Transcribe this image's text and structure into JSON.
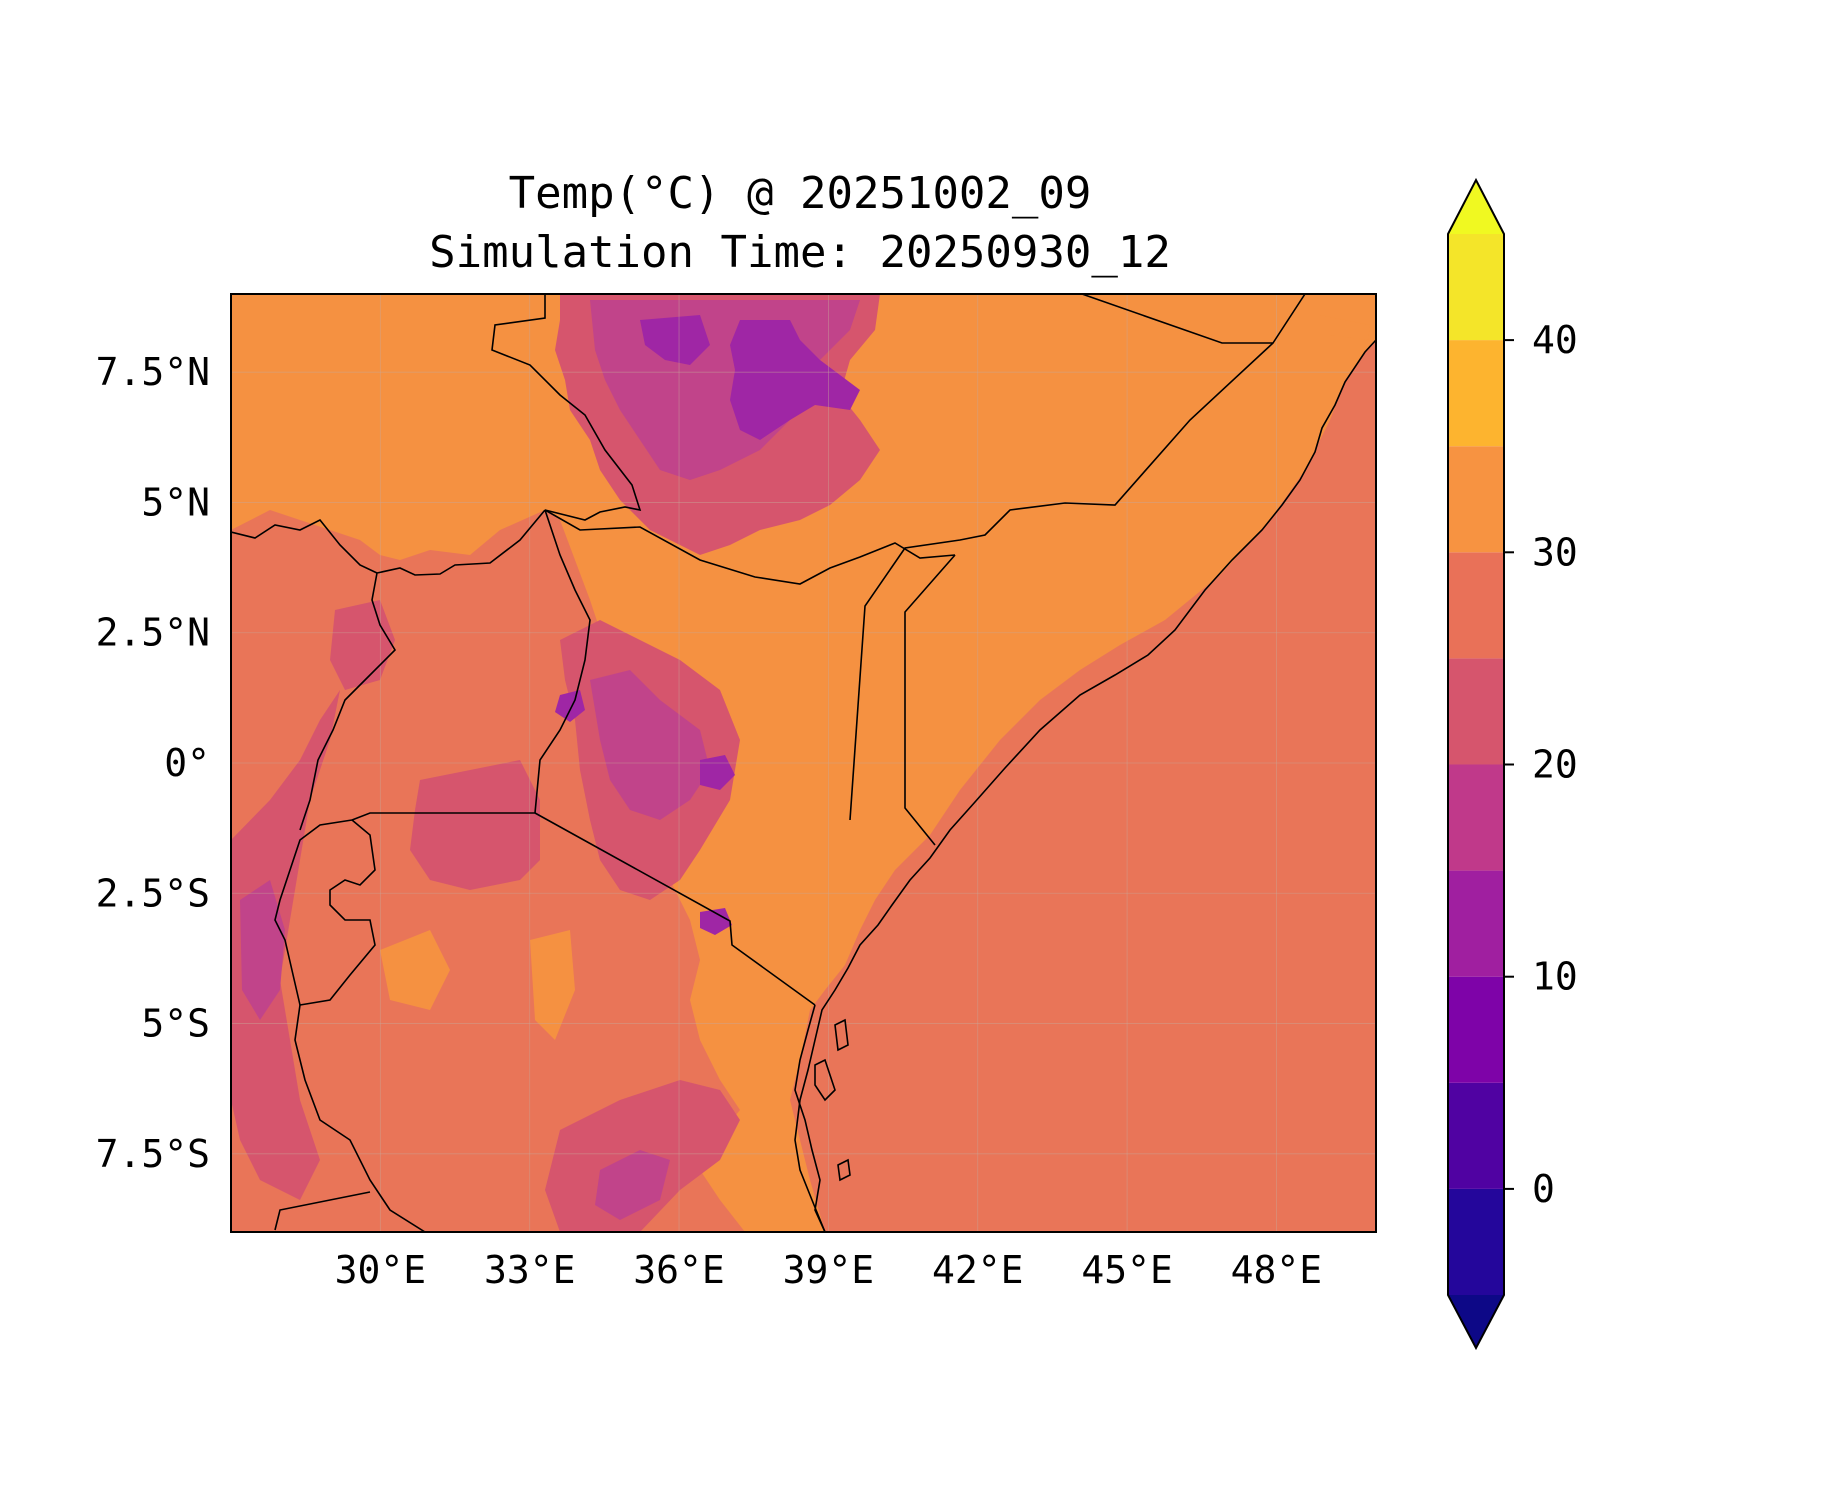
{
  "map": {
    "title_line1": "Temp(°C) @ 20251002_09",
    "title_line2": "Simulation Time: 20250930_12",
    "lon_range": [
      27.0,
      50.0
    ],
    "lat_range": [
      -9.0,
      9.0
    ],
    "lon_ticks": [
      {
        "value": 30,
        "label": "30°E"
      },
      {
        "value": 33,
        "label": "33°E"
      },
      {
        "value": 36,
        "label": "36°E"
      },
      {
        "value": 39,
        "label": "39°E"
      },
      {
        "value": 42,
        "label": "42°E"
      },
      {
        "value": 45,
        "label": "45°E"
      },
      {
        "value": 48,
        "label": "48°E"
      }
    ],
    "lat_ticks": [
      {
        "value": 7.5,
        "label": "7.5°N"
      },
      {
        "value": 5,
        "label": "5°N"
      },
      {
        "value": 2.5,
        "label": "2.5°N"
      },
      {
        "value": 0,
        "label": "0°"
      },
      {
        "value": -2.5,
        "label": "2.5°S"
      },
      {
        "value": -5,
        "label": "5°S"
      },
      {
        "value": -7.5,
        "label": "7.5°S"
      }
    ],
    "colors": {
      "ocean": "#e97558",
      "land_warm": "#f59141",
      "cool_1": "#d6556d",
      "cool_2": "#c1448a",
      "cool_3": "#9f26a5",
      "grid": "#c8a89a"
    }
  },
  "colorbar": {
    "min": -5,
    "max": 45,
    "ticks": [
      {
        "value": 0,
        "label": "0"
      },
      {
        "value": 10,
        "label": "10"
      },
      {
        "value": 20,
        "label": "20"
      },
      {
        "value": 30,
        "label": "30"
      },
      {
        "value": 40,
        "label": "40"
      }
    ],
    "levels": [
      {
        "from": -5,
        "to": 0,
        "color": "#24069b"
      },
      {
        "from": 0,
        "to": 5,
        "color": "#5002a2"
      },
      {
        "from": 5,
        "to": 10,
        "color": "#7e03a8"
      },
      {
        "from": 10,
        "to": 15,
        "color": "#a01fa0"
      },
      {
        "from": 15,
        "to": 20,
        "color": "#c0398a"
      },
      {
        "from": 20,
        "to": 25,
        "color": "#d6556d"
      },
      {
        "from": 25,
        "to": 30,
        "color": "#e97158"
      },
      {
        "from": 30,
        "to": 35,
        "color": "#f79341"
      },
      {
        "from": 35,
        "to": 40,
        "color": "#fdb42f"
      },
      {
        "from": 40,
        "to": 45,
        "color": "#f4e529"
      }
    ],
    "under_color": "#0d0887",
    "over_color": "#f0f921"
  }
}
